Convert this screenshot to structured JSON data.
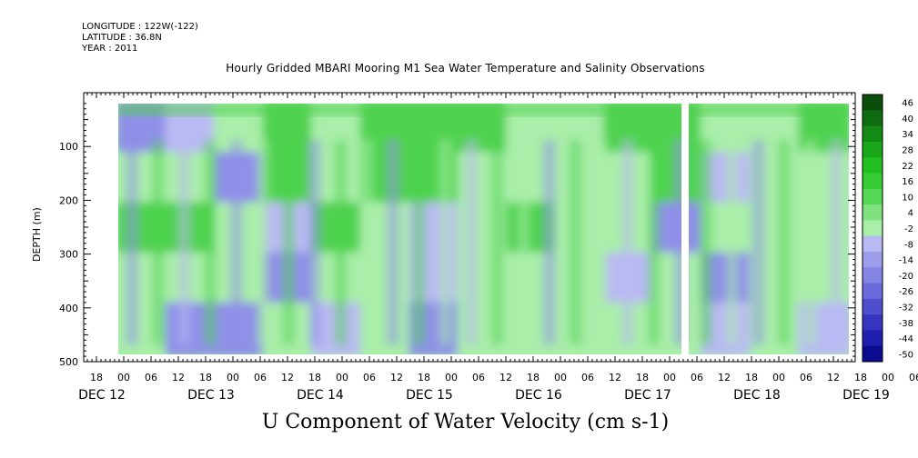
{
  "header": {
    "longitude": "LONGITUDE : 122W(-122)",
    "latitude": "LATITUDE : 36.8N",
    "year": "YEAR : 2011"
  },
  "title": "Hourly Gridded MBARI Mooring M1 Sea Water Temperature and Salinity Observations",
  "plot_title": "U Component of Water Velocity (cm s-1)",
  "colors": {
    "negative_light": "#b9b9f3",
    "negative_mid": "#8f8fe8",
    "negative_dark": "#5a5ad8",
    "positive_light": "#a9eea9",
    "positive_mid": "#4fd24f",
    "positive_dark": "#0e6b0e"
  },
  "chart_data": {
    "type": "heatmap",
    "title": "U Component of Water Velocity (cm s-1)",
    "xlabel": "",
    "ylabel": "DEPTH (m)",
    "ylim": [
      500,
      20
    ],
    "yticks": [
      100,
      200,
      300,
      400,
      500
    ],
    "xlim_hours": [
      -6,
      159
    ],
    "x_hour_ticks": [
      "18",
      "00",
      "06",
      "12",
      "18",
      "00",
      "06",
      "12",
      "18",
      "00",
      "06",
      "12",
      "18",
      "00",
      "06",
      "12",
      "18",
      "00",
      "06",
      "12",
      "18",
      "00",
      "06",
      "12",
      "18",
      "00",
      "06",
      "12",
      "18",
      "00",
      "06",
      "12"
    ],
    "x_day_labels": [
      "DEC 12",
      "DEC 13",
      "DEC 14",
      "DEC 15",
      "DEC 16",
      "DEC 17",
      "DEC 18",
      "DEC 19"
    ],
    "colorbar": {
      "levels": [
        -50,
        -44,
        -38,
        -32,
        -26,
        -20,
        -14,
        -8,
        -2,
        4,
        10,
        16,
        22,
        28,
        34,
        40,
        46
      ],
      "labels": [
        "46",
        "40",
        "34",
        "28",
        "22",
        "16",
        "10",
        "4",
        "-2",
        "-8",
        "-14",
        "-20",
        "-26",
        "-32",
        "-38",
        "-44",
        "-50"
      ],
      "range": [
        -50,
        52
      ]
    },
    "data_extent": {
      "start": "DEC 12 00",
      "end": "DEC 19 13",
      "depth_min": 20,
      "depth_max": 485
    },
    "gaps": [
      {
        "start": "DEC 17 03",
        "end": "DEC 17 04"
      }
    ],
    "approx_pattern": [
      {
        "depth": 50,
        "u": [
          -10,
          -4,
          8,
          14,
          6,
          20,
          16,
          12,
          8,
          4,
          18,
          14,
          6,
          2,
          10
        ]
      },
      {
        "depth": 150,
        "u": [
          8,
          4,
          -6,
          10,
          6,
          12,
          14,
          4,
          2,
          8,
          6,
          10,
          -4,
          4,
          8
        ]
      },
      {
        "depth": 250,
        "u": [
          16,
          10,
          4,
          -4,
          10,
          6,
          -2,
          8,
          10,
          6,
          4,
          -6,
          2,
          8,
          4
        ]
      },
      {
        "depth": 350,
        "u": [
          6,
          8,
          2,
          -6,
          4,
          6,
          -4,
          2,
          6,
          2,
          -2,
          4,
          -8,
          2,
          6
        ]
      },
      {
        "depth": 450,
        "u": [
          4,
          -6,
          -8,
          2,
          -4,
          4,
          -6,
          6,
          2,
          4,
          2,
          6,
          -4,
          4,
          -2
        ]
      }
    ]
  }
}
